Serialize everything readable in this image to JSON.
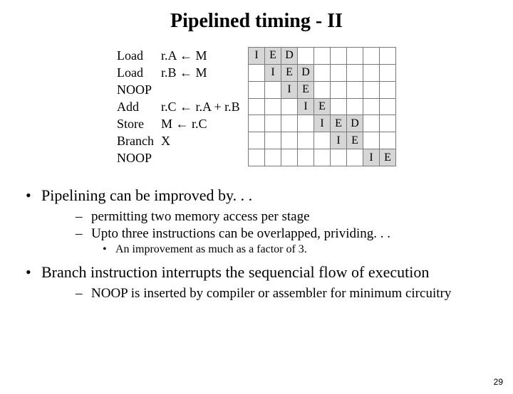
{
  "title": "Pipelined timing - II",
  "instructions": [
    {
      "name": "Load",
      "expr": "r.A ← M"
    },
    {
      "name": "Load",
      "expr": "r.B ← M"
    },
    {
      "name": "NOOP",
      "expr": ""
    },
    {
      "name": "Add",
      "expr": "r.C ← r.A + r.B"
    },
    {
      "name": "Store",
      "expr": "M ← r.C"
    },
    {
      "name": "Branch",
      "expr": "X"
    },
    {
      "name": "NOOP",
      "expr": ""
    }
  ],
  "grid": {
    "rows": 7,
    "cols": 9,
    "stages_label": {
      "I": "I",
      "E": "E",
      "D": "D"
    },
    "cells": [
      [
        {
          "c": 0,
          "v": "I"
        },
        {
          "c": 1,
          "v": "E"
        },
        {
          "c": 2,
          "v": "D"
        }
      ],
      [
        {
          "c": 1,
          "v": "I"
        },
        {
          "c": 2,
          "v": "E"
        },
        {
          "c": 3,
          "v": "D"
        }
      ],
      [
        {
          "c": 2,
          "v": "I"
        },
        {
          "c": 3,
          "v": "E"
        }
      ],
      [
        {
          "c": 3,
          "v": "I"
        },
        {
          "c": 4,
          "v": "E"
        }
      ],
      [
        {
          "c": 4,
          "v": "I"
        },
        {
          "c": 5,
          "v": "E"
        },
        {
          "c": 6,
          "v": "D"
        }
      ],
      [
        {
          "c": 5,
          "v": "I"
        },
        {
          "c": 6,
          "v": "E"
        }
      ],
      [
        {
          "c": 7,
          "v": "I"
        },
        {
          "c": 8,
          "v": "E"
        }
      ]
    ],
    "stage_bg": "#d6d6d6",
    "border_color": "#7a7a7a"
  },
  "bullets": {
    "b1": "Pipelining can be improved by. . .",
    "b1_subs": [
      "permitting two memory access per stage",
      "Upto three instructions can be overlapped, prividing. . ."
    ],
    "b1_subsub": "An improvement as much as a factor of 3.",
    "b2": "Branch instruction interrupts the sequencial flow of execution",
    "b2_subs": [
      "NOOP is inserted by compiler or assembler for minimum circuitry"
    ]
  },
  "pagenum": "29",
  "colors": {
    "bg": "#ffffff",
    "text": "#000000"
  }
}
